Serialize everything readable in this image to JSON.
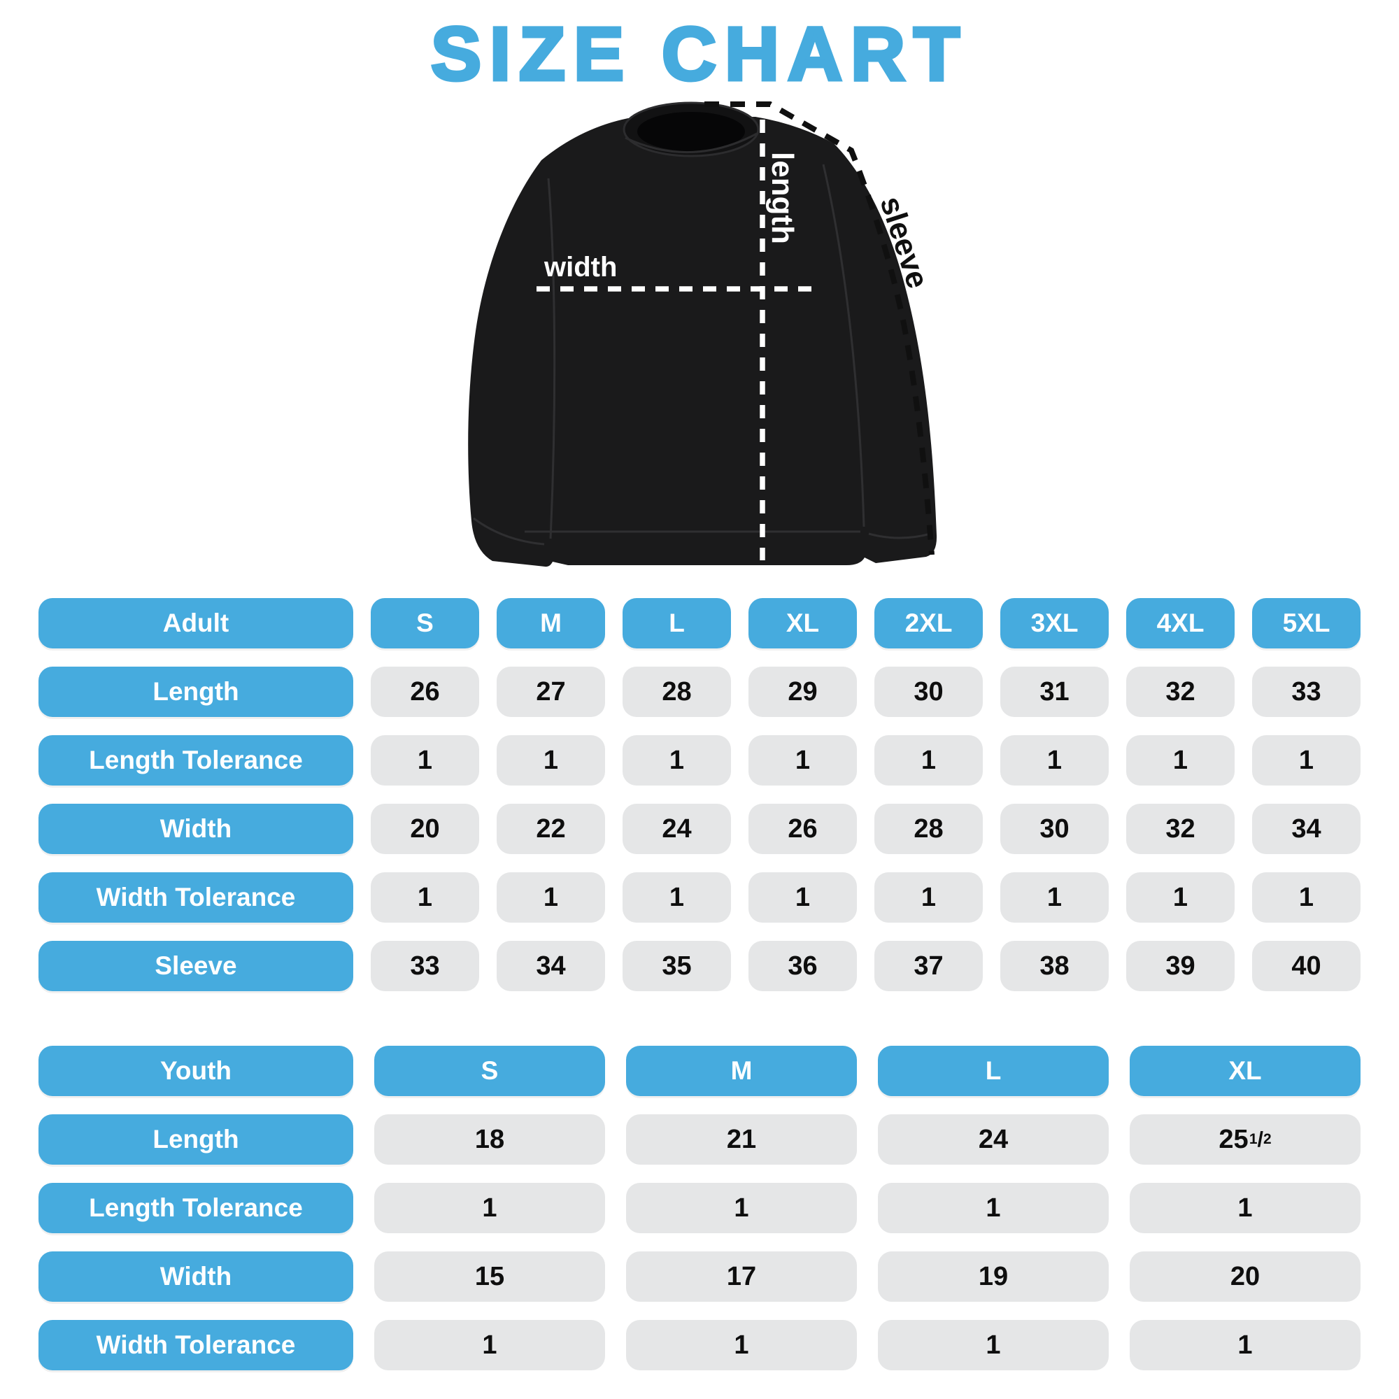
{
  "title": "SIZE CHART",
  "colors": {
    "blue": "#46abde",
    "gray": "#e5e6e7",
    "garment": "#1a1a1b",
    "text_dark": "#0e0e0e",
    "white": "#ffffff"
  },
  "diagram": {
    "length_label": "length",
    "width_label": "width",
    "sleeve_label": "sleeve"
  },
  "adult_table": {
    "header": [
      "Adult",
      "S",
      "M",
      "L",
      "XL",
      "2XL",
      "3XL",
      "4XL",
      "5XL"
    ],
    "rows": [
      {
        "label": "Length",
        "values": [
          "26",
          "27",
          "28",
          "29",
          "30",
          "31",
          "32",
          "33"
        ]
      },
      {
        "label": "Length Tolerance",
        "values": [
          "1",
          "1",
          "1",
          "1",
          "1",
          "1",
          "1",
          "1"
        ]
      },
      {
        "label": "Width",
        "values": [
          "20",
          "22",
          "24",
          "26",
          "28",
          "30",
          "32",
          "34"
        ]
      },
      {
        "label": "Width Tolerance",
        "values": [
          "1",
          "1",
          "1",
          "1",
          "1",
          "1",
          "1",
          "1"
        ]
      },
      {
        "label": "Sleeve",
        "values": [
          "33",
          "34",
          "35",
          "36",
          "37",
          "38",
          "39",
          "40"
        ]
      }
    ]
  },
  "youth_table": {
    "header": [
      "Youth",
      "S",
      "M",
      "L",
      "XL"
    ],
    "rows": [
      {
        "label": "Length",
        "values": [
          "18",
          "21",
          "24",
          "25 1/2"
        ]
      },
      {
        "label": "Length Tolerance",
        "values": [
          "1",
          "1",
          "1",
          "1"
        ]
      },
      {
        "label": "Width",
        "values": [
          "15",
          "17",
          "19",
          "20"
        ]
      },
      {
        "label": "Width Tolerance",
        "values": [
          "1",
          "1",
          "1",
          "1"
        ]
      }
    ]
  }
}
